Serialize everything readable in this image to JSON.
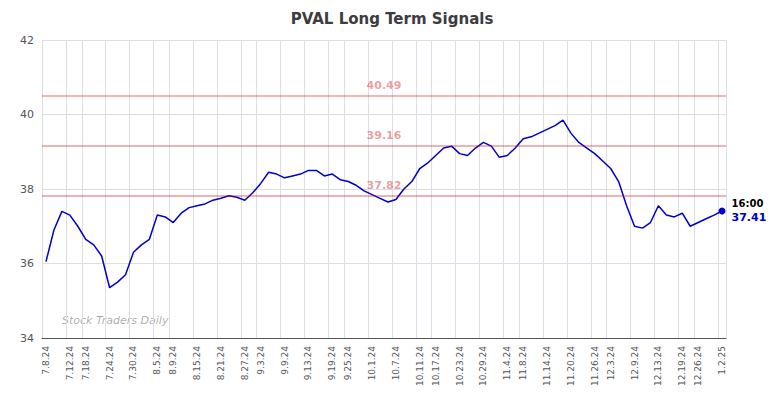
{
  "chart_data": {
    "type": "line",
    "title": "PVAL Long Term Signals",
    "watermark": "Stock Traders Daily",
    "categories": [
      "7.8.24",
      null,
      null,
      "7.12.24",
      null,
      "7.18.24",
      null,
      null,
      "7.24.24",
      null,
      null,
      "7.30.24",
      null,
      null,
      "8.5.24",
      null,
      "8.9.24",
      null,
      null,
      "8.15.24",
      null,
      null,
      "8.21.24",
      null,
      null,
      "8.27.24",
      null,
      "9.3.24",
      null,
      null,
      "9.9.24",
      null,
      null,
      "9.13.24",
      null,
      null,
      "9.19.24",
      null,
      "9.25.24",
      null,
      null,
      "10.1.24",
      null,
      null,
      "10.7.24",
      null,
      null,
      "10.11.24",
      null,
      "10.17.24",
      null,
      null,
      "10.23.24",
      null,
      null,
      "10.29.24",
      null,
      null,
      "11.4.24",
      null,
      "11.8.24",
      null,
      null,
      "11.14.24",
      null,
      null,
      "11.20.24",
      null,
      null,
      "11.26.24",
      null,
      "12.3.24",
      null,
      null,
      "12.9.24",
      null,
      null,
      "12.13.24",
      null,
      null,
      "12.19.24",
      null,
      "12.26.24",
      null,
      null,
      "1.2.25"
    ],
    "values": [
      36.05,
      36.9,
      37.4,
      37.3,
      37.0,
      36.65,
      36.5,
      36.2,
      35.35,
      35.5,
      35.7,
      36.3,
      36.5,
      36.65,
      37.3,
      37.25,
      37.1,
      37.35,
      37.5,
      37.55,
      37.6,
      37.7,
      37.75,
      37.82,
      37.78,
      37.7,
      37.9,
      38.15,
      38.45,
      38.4,
      38.3,
      38.35,
      38.4,
      38.5,
      38.5,
      38.35,
      38.4,
      38.25,
      38.2,
      38.1,
      37.95,
      37.85,
      37.75,
      37.65,
      37.72,
      38.0,
      38.2,
      38.55,
      38.7,
      38.9,
      39.1,
      39.15,
      38.95,
      38.9,
      39.1,
      39.25,
      39.15,
      38.85,
      38.9,
      39.1,
      39.35,
      39.4,
      39.5,
      39.6,
      39.7,
      39.85,
      39.5,
      39.25,
      39.1,
      38.95,
      38.75,
      38.55,
      38.2,
      37.55,
      37.0,
      36.95,
      37.1,
      37.55,
      37.3,
      37.25,
      37.35,
      37.0,
      37.1,
      37.2,
      37.3,
      37.41
    ],
    "color": "#0000cc",
    "signal_lines": [
      {
        "value": 40.49,
        "color": "#dd0000"
      },
      {
        "value": 39.16,
        "color": "#cc0000"
      },
      {
        "value": 37.82,
        "color": "#cc0000"
      }
    ],
    "last_time": "16:00",
    "last_price": 37.41,
    "ylim": [
      34,
      42
    ],
    "yticks": [
      34,
      36,
      38,
      40,
      42
    ],
    "grid": true
  }
}
